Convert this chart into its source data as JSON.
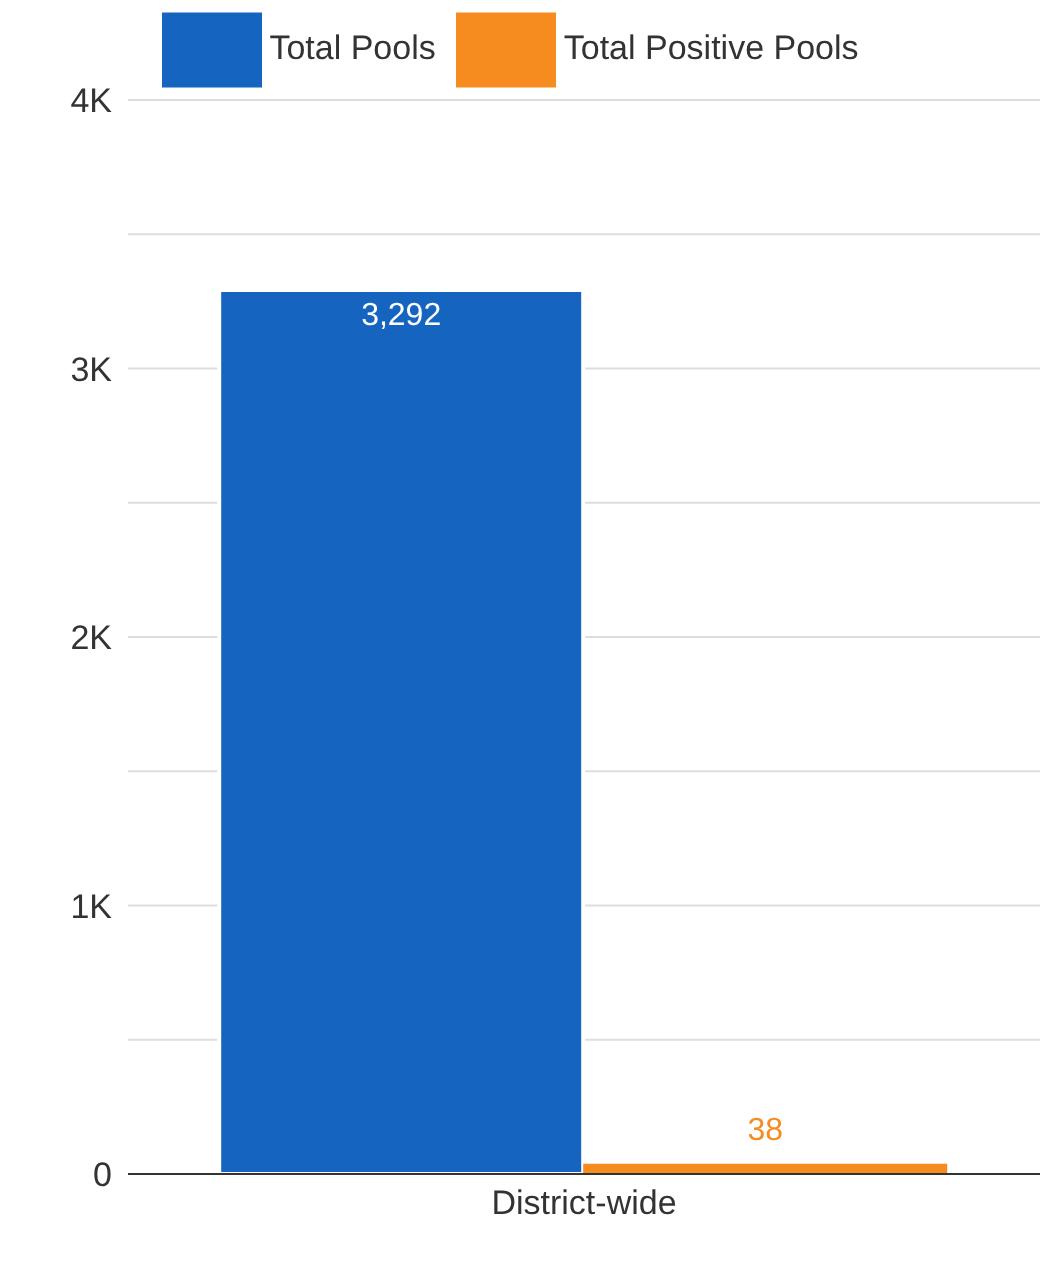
{
  "chart_data": {
    "type": "bar",
    "categories": [
      "District-wide"
    ],
    "series": [
      {
        "name": "Total Pools",
        "color": "#1565c0",
        "values": [
          3292
        ],
        "value_labels": [
          "3,292"
        ]
      },
      {
        "name": "Total Positive Pools",
        "color": "#f68b1f",
        "values": [
          38
        ],
        "value_labels": [
          "38"
        ]
      }
    ],
    "ylim": [
      0,
      4000
    ],
    "yticks": [
      {
        "value": 0,
        "label": "0"
      },
      {
        "value": 500,
        "label": null
      },
      {
        "value": 1000,
        "label": "1K"
      },
      {
        "value": 1500,
        "label": null
      },
      {
        "value": 2000,
        "label": "2K"
      },
      {
        "value": 2500,
        "label": null
      },
      {
        "value": 3000,
        "label": "3K"
      },
      {
        "value": 3500,
        "label": null
      },
      {
        "value": 4000,
        "label": "4K"
      }
    ],
    "grid": "y",
    "legend": "top"
  }
}
